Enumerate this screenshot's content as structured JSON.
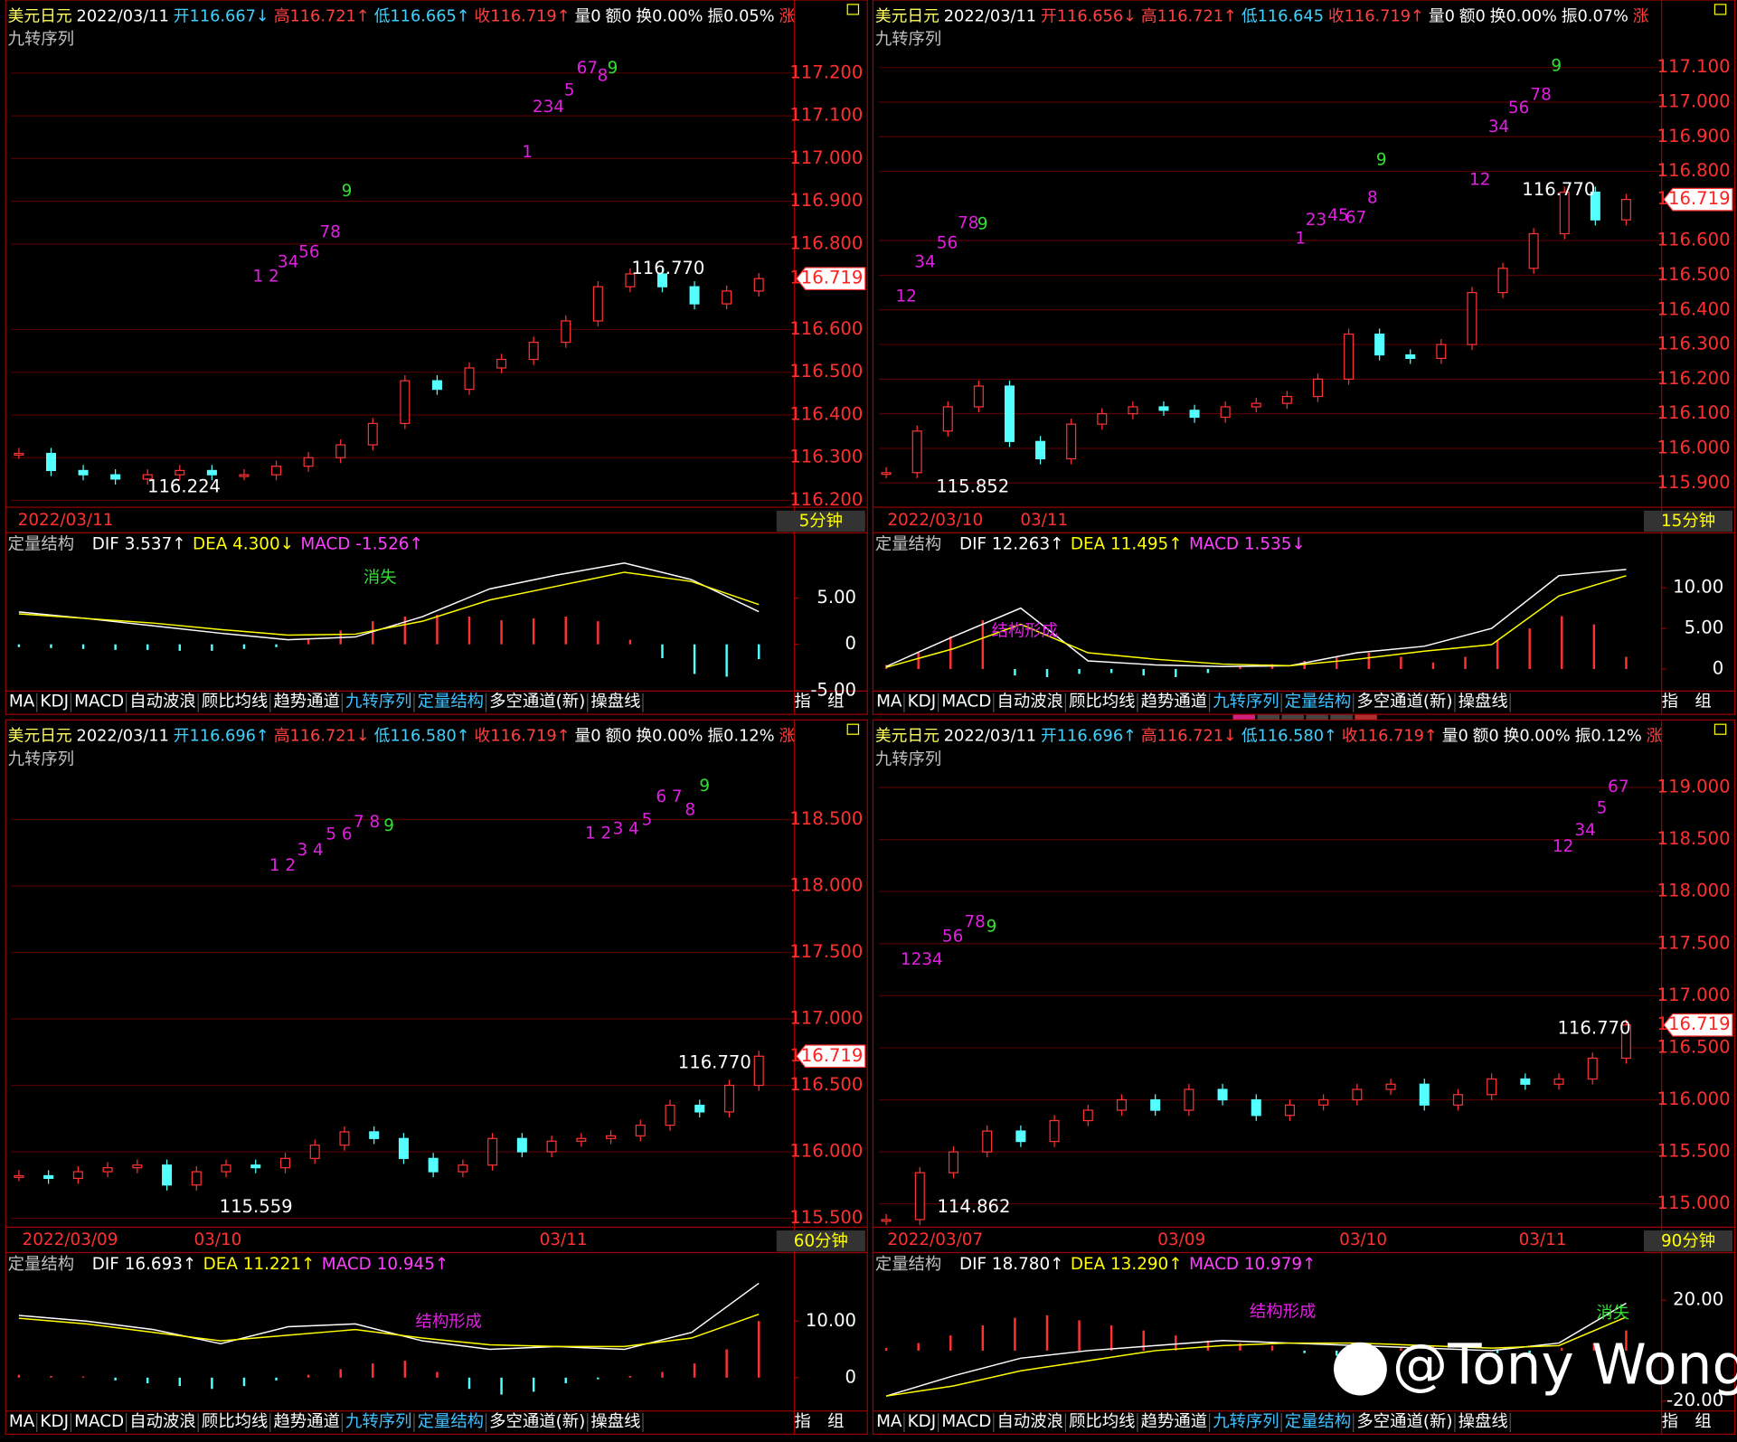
{
  "panels": [
    {
      "header": [
        {
          "text": "美元日元",
          "color": "#ffff60"
        },
        {
          "text": "2022/03/11",
          "color": "#ffffff"
        },
        {
          "text": "开116.667↓",
          "color": "#40d0ff"
        },
        {
          "text": "高116.721↑",
          "color": "#ff4040"
        },
        {
          "text": "低116.665↑",
          "color": "#40d0ff"
        },
        {
          "text": "收116.719↑",
          "color": "#ff4040"
        },
        {
          "text": "量0",
          "color": "#ffffff"
        },
        {
          "text": "额0",
          "color": "#ffffff"
        },
        {
          "text": "换0.00%",
          "color": "#ffffff"
        },
        {
          "text": "振0.05%",
          "color": "#ffffff"
        },
        {
          "text": "涨",
          "color": "#ff4040"
        }
      ],
      "subtitle": "九转序列",
      "ylim": [
        116.184,
        117.358
      ],
      "yticks": [
        {
          "value": 116.2,
          "label": "116.200"
        },
        {
          "value": 116.3,
          "label": "116.300"
        },
        {
          "value": 116.4,
          "label": "116.400"
        },
        {
          "value": 116.5,
          "label": "116.500"
        },
        {
          "value": 116.6,
          "label": "116.600"
        },
        {
          "value": 116.8,
          "label": "116.800"
        },
        {
          "value": 116.9,
          "label": "116.900"
        },
        {
          "value": 117,
          "label": "117.000"
        },
        {
          "value": 117.1,
          "label": "117.100"
        },
        {
          "value": 117.2,
          "label": "117.200"
        }
      ],
      "last_price": {
        "value": 116.719,
        "label": "116.719"
      },
      "closes": [
        116.31,
        116.27,
        116.26,
        116.25,
        116.26,
        116.27,
        116.26,
        116.26,
        116.28,
        116.3,
        116.33,
        116.38,
        116.48,
        116.46,
        116.51,
        116.53,
        116.57,
        116.62,
        116.7,
        116.73,
        116.7,
        116.66,
        116.69,
        116.719
      ],
      "high_label": "116.770",
      "low_label": "116.224",
      "td_sequence": [
        {
          "text": "1 2",
          "color": "#e020e0"
        },
        {
          "text": "34",
          "color": "#e020e0"
        },
        {
          "text": "56",
          "color": "#e020e0"
        },
        {
          "text": "78",
          "color": "#e020e0"
        },
        {
          "text": "9",
          "color": "#30e030"
        },
        {
          "text": "1",
          "color": "#e020e0"
        },
        {
          "text": "234",
          "color": "#e020e0"
        },
        {
          "text": "5",
          "color": "#e020e0"
        },
        {
          "text": "67",
          "color": "#e020e0"
        },
        {
          "text": "8",
          "color": "#e020e0"
        },
        {
          "text": "9",
          "color": "#30e030"
        }
      ],
      "date_labels": [
        "2022/03/11"
      ],
      "period": "5分钟",
      "macd": {
        "title": "定量结构",
        "indicators": [
          {
            "text": "DIF 3.537↑",
            "color": "#ffffff"
          },
          {
            "text": "DEA 4.300↓",
            "color": "#ffff00"
          },
          {
            "text": "MACD -1.526↑",
            "color": "#ff40ff"
          }
        ],
        "ylim": [
          -5.3,
          9.8
        ],
        "yticks": [
          {
            "value": 5,
            "label": "5.00"
          },
          0,
          {
            "value": -5,
            "label": "-5.00"
          }
        ],
        "dif": [
          3.5,
          2.8,
          2.0,
          1.2,
          0.5,
          0.8,
          3.0,
          6.0,
          7.5,
          8.8,
          7.0,
          3.537
        ],
        "dea": [
          3.3,
          2.8,
          2.3,
          1.6,
          1.0,
          1.1,
          2.5,
          4.8,
          6.3,
          7.8,
          6.8,
          4.3
        ],
        "hist": [
          -0.3,
          -0.4,
          -0.5,
          -0.6,
          -0.6,
          -0.7,
          -0.7,
          -0.5,
          -0.3,
          0.5,
          1.5,
          2.5,
          3.0,
          3.2,
          3.0,
          2.6,
          2.8,
          3.0,
          2.5,
          0.5,
          -1.5,
          -3.2,
          -3.5,
          -1.6
        ],
        "annotations": [
          {
            "text": "消失",
            "color": "#30e030"
          }
        ]
      }
    },
    {
      "header": [
        {
          "text": "美元日元",
          "color": "#ffff60"
        },
        {
          "text": "2022/03/11",
          "color": "#ffffff"
        },
        {
          "text": "开116.656↓",
          "color": "#ff4040"
        },
        {
          "text": "高116.721↑",
          "color": "#ff4040"
        },
        {
          "text": "低116.645",
          "color": "#40d0ff"
        },
        {
          "text": "收116.719↑",
          "color": "#ff4040"
        },
        {
          "text": "量0",
          "color": "#ffffff"
        },
        {
          "text": "额0",
          "color": "#ffffff"
        },
        {
          "text": "换0.00%",
          "color": "#ffffff"
        },
        {
          "text": "振0.07%",
          "color": "#ffffff"
        },
        {
          "text": "涨",
          "color": "#ff4040"
        }
      ],
      "subtitle": "九转序列",
      "ylim": [
        115.83,
        117.279
      ],
      "yticks": [
        {
          "value": 115.9,
          "label": "115.900"
        },
        {
          "value": 116,
          "label": "116.000"
        },
        {
          "value": 116.1,
          "label": "116.100"
        },
        {
          "value": 116.2,
          "label": "116.200"
        },
        {
          "value": 116.3,
          "label": "116.300"
        },
        {
          "value": 116.4,
          "label": "116.400"
        },
        {
          "value": 116.5,
          "label": "116.500"
        },
        {
          "value": 116.6,
          "label": "116.600"
        },
        {
          "value": 116.8,
          "label": "116.800"
        },
        {
          "value": 116.9,
          "label": "116.900"
        },
        {
          "value": 117,
          "label": "117.000"
        },
        {
          "value": 117.1,
          "label": "117.100"
        }
      ],
      "last_price": {
        "value": 116.719,
        "label": "116.719"
      },
      "closes": [
        115.93,
        116.05,
        116.12,
        116.18,
        116.02,
        115.97,
        116.07,
        116.1,
        116.12,
        116.11,
        116.09,
        116.12,
        116.13,
        116.15,
        116.2,
        116.33,
        116.27,
        116.26,
        116.3,
        116.45,
        116.52,
        116.62,
        116.74,
        116.66,
        116.719
      ],
      "high_label": "116.770",
      "low_label": "115.852",
      "td_sequence": [
        {
          "text": "12",
          "color": "#e020e0"
        },
        {
          "text": "34",
          "color": "#e020e0"
        },
        {
          "text": "56",
          "color": "#e020e0"
        },
        {
          "text": "78",
          "color": "#e020e0"
        },
        {
          "text": "9",
          "color": "#30e030"
        },
        {
          "text": "1",
          "color": "#e020e0"
        },
        {
          "text": "23",
          "color": "#e020e0"
        },
        {
          "text": "45",
          "color": "#e020e0"
        },
        {
          "text": "67",
          "color": "#e020e0"
        },
        {
          "text": "8",
          "color": "#e020e0"
        },
        {
          "text": "9",
          "color": "#30e030"
        },
        {
          "text": "12",
          "color": "#e020e0"
        },
        {
          "text": "34",
          "color": "#e020e0"
        },
        {
          "text": "56",
          "color": "#e020e0"
        },
        {
          "text": "78",
          "color": "#e020e0"
        },
        {
          "text": "9",
          "color": "#30e030"
        }
      ],
      "date_labels": [
        "2022/03/10",
        "03/11"
      ],
      "period": "15分钟",
      "macd": {
        "title": "定量结构",
        "indicators": [
          {
            "text": "DIF 12.263↑",
            "color": "#ffffff"
          },
          {
            "text": "DEA 11.495↑",
            "color": "#ffff00"
          },
          {
            "text": "MACD 1.535↓",
            "color": "#ff40ff"
          }
        ],
        "ylim": [
          -3.0,
          14.2
        ],
        "yticks": [
          {
            "value": 10,
            "label": "10.00"
          },
          {
            "value": 5,
            "label": "5.00"
          },
          0
        ],
        "dif": [
          0.3,
          4.0,
          7.5,
          1.0,
          0.5,
          0.3,
          0.4,
          2.0,
          2.8,
          5.0,
          11.5,
          12.263
        ],
        "dea": [
          0.2,
          2.5,
          5.5,
          2.0,
          1.2,
          0.6,
          0.4,
          1.2,
          2.2,
          3.0,
          9.0,
          11.495
        ],
        "hist": [
          0.5,
          2.0,
          4.0,
          6.0,
          -0.8,
          -1.0,
          -0.6,
          -0.5,
          -0.8,
          -1.0,
          -0.5,
          0.3,
          0.6,
          1.0,
          1.5,
          2.0,
          1.5,
          0.8,
          1.5,
          3.5,
          5.0,
          6.5,
          5.5,
          1.5
        ],
        "annotations": [
          {
            "text": "结构形成",
            "color": "#e020e0"
          }
        ]
      }
    },
    {
      "header": [
        {
          "text": "美元日元",
          "color": "#ffff60"
        },
        {
          "text": "2022/03/11",
          "color": "#ffffff"
        },
        {
          "text": "开116.696↑",
          "color": "#40d0ff"
        },
        {
          "text": "高116.721↓",
          "color": "#ff4040"
        },
        {
          "text": "低116.580↑",
          "color": "#40d0ff"
        },
        {
          "text": "收116.719↑",
          "color": "#ff4040"
        },
        {
          "text": "量0",
          "color": "#ffffff"
        },
        {
          "text": "额0",
          "color": "#ffffff"
        },
        {
          "text": "换0.00%",
          "color": "#ffffff"
        },
        {
          "text": "振0.12%",
          "color": "#ffffff"
        },
        {
          "text": "涨",
          "color": "#ff4040"
        }
      ],
      "subtitle": "九转序列",
      "ylim": [
        115.433,
        119.208
      ],
      "yticks": [
        {
          "value": 115.5,
          "label": "115.500"
        },
        {
          "value": 116,
          "label": "116.000"
        },
        {
          "value": 116.5,
          "label": "116.500"
        },
        {
          "value": 117,
          "label": "117.000"
        },
        {
          "value": 117.5,
          "label": "117.500"
        },
        {
          "value": 118,
          "label": "118.000"
        },
        {
          "value": 118.5,
          "label": "118.500"
        }
      ],
      "last_price": {
        "value": 116.719,
        "label": "116.719"
      },
      "closes": [
        115.82,
        115.8,
        115.85,
        115.88,
        115.9,
        115.75,
        115.85,
        115.9,
        115.88,
        115.95,
        116.05,
        116.15,
        116.1,
        115.95,
        115.85,
        115.9,
        116.1,
        116.0,
        116.08,
        116.1,
        116.12,
        116.2,
        116.35,
        116.3,
        116.5,
        116.719
      ],
      "high_label": "116.770",
      "low_label": "115.559",
      "td_sequence": [
        {
          "text": "1 2",
          "color": "#e020e0"
        },
        {
          "text": "3 4",
          "color": "#e020e0"
        },
        {
          "text": "5 6",
          "color": "#e020e0"
        },
        {
          "text": "7 8",
          "color": "#e020e0"
        },
        {
          "text": "9",
          "color": "#30e030"
        },
        {
          "text": "1 2",
          "color": "#e020e0"
        },
        {
          "text": "3 4",
          "color": "#e020e0"
        },
        {
          "text": "5",
          "color": "#e020e0"
        },
        {
          "text": "6 7",
          "color": "#e020e0"
        },
        {
          "text": "8",
          "color": "#e020e0"
        },
        {
          "text": "9",
          "color": "#30e030"
        }
      ],
      "date_labels": [
        "2022/03/09",
        "03/10",
        "03/11"
      ],
      "period": "60分钟",
      "macd": {
        "title": "定量结构",
        "indicators": [
          {
            "text": "DIF 16.693↑",
            "color": "#ffffff"
          },
          {
            "text": "DEA 11.221↑",
            "color": "#ffff00"
          },
          {
            "text": "MACD 10.945↑",
            "color": "#ff40ff"
          }
        ],
        "ylim": [
          -6.3,
          18.4
        ],
        "yticks": [
          {
            "value": 10,
            "label": "10.00"
          },
          0
        ],
        "dif": [
          11.0,
          10.0,
          8.5,
          6.0,
          9.0,
          9.5,
          6.5,
          5.0,
          5.5,
          5.0,
          8.0,
          16.693
        ],
        "dea": [
          10.5,
          9.5,
          8.0,
          6.5,
          7.5,
          8.5,
          7.0,
          5.8,
          5.5,
          5.5,
          7.0,
          11.221
        ],
        "hist": [
          0.5,
          0.3,
          0.2,
          -0.5,
          -1.0,
          -1.5,
          -2.0,
          -1.5,
          -0.5,
          0.5,
          1.5,
          2.5,
          3.0,
          1.0,
          -2.0,
          -3.0,
          -2.5,
          -1.0,
          -0.3,
          0.3,
          1.0,
          2.5,
          5.0,
          10.0
        ],
        "annotations": [
          {
            "text": "结构形成",
            "color": "#e020e0"
          }
        ]
      }
    },
    {
      "header": [
        {
          "text": "美元日元",
          "color": "#ffff60"
        },
        {
          "text": "2022/03/11",
          "color": "#ffffff"
        },
        {
          "text": "开116.696↑",
          "color": "#40d0ff"
        },
        {
          "text": "高116.721↓",
          "color": "#ff4040"
        },
        {
          "text": "低116.580↑",
          "color": "#40d0ff"
        },
        {
          "text": "收116.719↑",
          "color": "#ff4040"
        },
        {
          "text": "量0",
          "color": "#ffffff"
        },
        {
          "text": "额0",
          "color": "#ffffff"
        },
        {
          "text": "换0.00%",
          "color": "#ffffff"
        },
        {
          "text": "振0.12%",
          "color": "#ffffff"
        },
        {
          "text": "涨",
          "color": "#ff4040"
        }
      ],
      "subtitle": "九转序列",
      "ylim": [
        114.777,
        119.596
      ],
      "yticks": [
        {
          "value": 115,
          "label": "115.000"
        },
        {
          "value": 115.5,
          "label": "115.500"
        },
        {
          "value": 116,
          "label": "116.000"
        },
        {
          "value": 116.5,
          "label": "116.500"
        },
        {
          "value": 117,
          "label": "117.000"
        },
        {
          "value": 117.5,
          "label": "117.500"
        },
        {
          "value": 118,
          "label": "118.000"
        },
        {
          "value": 118.5,
          "label": "118.500"
        },
        {
          "value": 119,
          "label": "119.000"
        }
      ],
      "last_price": {
        "value": 116.719,
        "label": "116.719"
      },
      "closes": [
        114.85,
        115.3,
        115.5,
        115.7,
        115.6,
        115.8,
        115.9,
        116.0,
        115.9,
        116.1,
        116.0,
        115.85,
        115.95,
        116.0,
        116.1,
        116.15,
        115.95,
        116.05,
        116.2,
        116.15,
        116.2,
        116.4,
        116.719
      ],
      "high_label": "116.770",
      "low_label": "114.862",
      "td_sequence": [
        {
          "text": "1234",
          "color": "#e020e0"
        },
        {
          "text": "56",
          "color": "#e020e0"
        },
        {
          "text": "78",
          "color": "#e020e0"
        },
        {
          "text": "9",
          "color": "#30e030"
        },
        {
          "text": "12",
          "color": "#e020e0"
        },
        {
          "text": "34",
          "color": "#e020e0"
        },
        {
          "text": "5",
          "color": "#e020e0"
        },
        {
          "text": "67",
          "color": "#e020e0"
        }
      ],
      "date_labels": [
        "2022/03/07",
        "03/09",
        "03/10",
        "03/11"
      ],
      "period": "90分钟",
      "macd": {
        "title": "定量结构",
        "indicators": [
          {
            "text": "DIF 18.780↑",
            "color": "#ffffff"
          },
          {
            "text": "DEA 13.290↑",
            "color": "#ffff00"
          },
          {
            "text": "MACD 10.979↑",
            "color": "#ff40ff"
          }
        ],
        "ylim": [
          -24.8,
          30.5
        ],
        "yticks": [
          {
            "value": 20,
            "label": "20.00"
          },
          {
            "value": -20,
            "label": "-20.00"
          }
        ],
        "dif": [
          -18,
          -10,
          -3,
          0,
          2,
          4,
          3,
          2,
          1,
          0,
          3,
          18.78
        ],
        "dea": [
          -18,
          -14,
          -8,
          -4,
          0,
          2,
          3,
          3,
          2,
          1,
          2,
          13.29
        ],
        "hist": [
          1,
          3,
          6,
          10,
          13,
          14,
          12,
          10,
          8,
          6,
          4,
          3,
          2,
          -1,
          -2,
          -1,
          1,
          2,
          1,
          -1,
          -1,
          1,
          3,
          8
        ],
        "annotations": [
          {
            "text": "结构形成",
            "color": "#e020e0"
          },
          {
            "text": "消失",
            "color": "#30e030"
          }
        ]
      }
    }
  ],
  "tabs": [
    {
      "text": "MA",
      "color": "#ffffff"
    },
    {
      "text": "KDJ",
      "color": "#ffffff"
    },
    {
      "text": "MACD",
      "color": "#ffffff"
    },
    {
      "text": "自动波浪",
      "color": "#ffffff"
    },
    {
      "text": "顾比均线",
      "color": "#ffffff"
    },
    {
      "text": "趋势通道",
      "color": "#ffffff"
    },
    {
      "text": "九转序列",
      "color": "#40c0ff"
    },
    {
      "text": "定量结构",
      "color": "#40c0ff"
    },
    {
      "text": "多空通道(新)",
      "color": "#ffffff"
    },
    {
      "text": "操盘线",
      "color": "#ffffff"
    }
  ],
  "side_buttons": [
    "指",
    "组"
  ],
  "watermark": "@Tony Wong"
}
